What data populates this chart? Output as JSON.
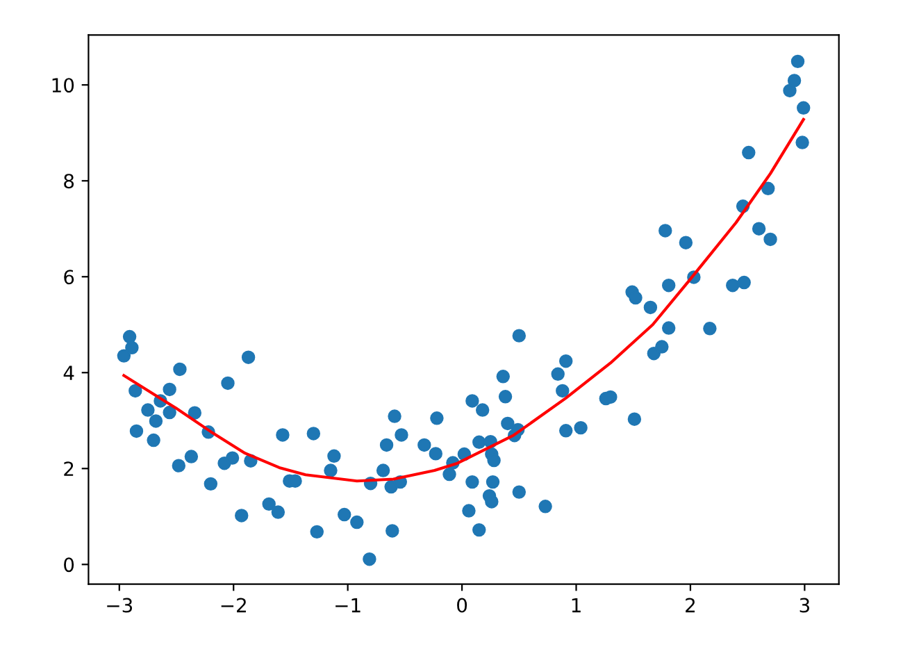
{
  "chart_data": {
    "type": "scatter",
    "xlim": [
      -3.27,
      3.3
    ],
    "ylim": [
      -0.41,
      11.04
    ],
    "xticks": [
      {
        "value": -3,
        "label": "−3"
      },
      {
        "value": -2,
        "label": "−2"
      },
      {
        "value": -1,
        "label": "−1"
      },
      0,
      1,
      2,
      3
    ],
    "yticks": [
      0,
      2,
      4,
      6,
      8,
      10
    ],
    "grid": false,
    "legend": false,
    "series": [
      {
        "color": "#1f77b4",
        "marker": "circle",
        "x": [
          -2.96,
          -2.91,
          -2.89,
          -2.86,
          -2.85,
          -2.75,
          -2.7,
          -2.68,
          -2.64,
          -2.56,
          -2.56,
          -2.48,
          -2.47,
          -2.37,
          -2.34,
          -2.22,
          -2.2,
          -2.08,
          -2.05,
          -2.01,
          -1.93,
          -1.87,
          -1.85,
          -1.69,
          -1.61,
          -1.57,
          -1.51,
          -1.46,
          -1.3,
          -1.27,
          -1.15,
          -1.12,
          -1.03,
          -0.92,
          -0.81,
          -0.8,
          -0.69,
          -0.66,
          -0.62,
          -0.61,
          -0.59,
          -0.54,
          -0.53,
          -0.33,
          -0.23,
          -0.22,
          -0.11,
          -0.08,
          0.02,
          0.06,
          0.09,
          0.09,
          0.15,
          0.15,
          0.18,
          0.25,
          0.24,
          0.26,
          0.26,
          0.28,
          0.27,
          0.36,
          0.38,
          0.4,
          0.46,
          0.49,
          0.5,
          0.5,
          0.73,
          0.84,
          0.88,
          0.91,
          0.91,
          1.04,
          1.26,
          1.3,
          1.51,
          1.49,
          1.52,
          1.65,
          1.68,
          1.75,
          1.78,
          1.81,
          1.81,
          1.96,
          2.03,
          2.17,
          2.37,
          2.47,
          2.46,
          2.51,
          2.6,
          2.68,
          2.7,
          2.87,
          2.91,
          2.94,
          2.99,
          2.98
        ],
        "values": [
          4.35,
          4.75,
          4.52,
          3.62,
          2.78,
          3.22,
          2.59,
          2.99,
          3.41,
          3.65,
          3.17,
          2.06,
          4.07,
          2.25,
          3.16,
          2.76,
          1.68,
          2.11,
          3.78,
          2.22,
          1.02,
          4.32,
          2.16,
          1.26,
          1.09,
          2.7,
          1.74,
          1.74,
          2.73,
          0.68,
          1.96,
          2.26,
          1.04,
          0.88,
          0.11,
          1.69,
          1.96,
          2.49,
          1.62,
          0.7,
          3.09,
          1.72,
          2.7,
          2.49,
          2.31,
          3.05,
          1.88,
          2.12,
          2.3,
          1.12,
          3.41,
          1.72,
          2.55,
          0.72,
          3.22,
          2.56,
          1.43,
          1.31,
          2.3,
          2.17,
          1.72,
          3.92,
          3.5,
          2.94,
          2.69,
          2.81,
          4.77,
          1.51,
          1.21,
          3.97,
          3.62,
          4.24,
          2.79,
          2.85,
          3.46,
          3.49,
          3.03,
          5.68,
          5.56,
          5.36,
          4.4,
          4.54,
          6.96,
          5.82,
          4.93,
          6.71,
          5.99,
          4.92,
          5.82,
          5.88,
          7.47,
          8.59,
          7.0,
          7.84,
          6.78,
          9.88,
          10.09,
          10.49,
          9.52,
          8.8
        ]
      },
      {
        "type": "line",
        "color": "#ff0000",
        "marker": "none",
        "line_style": "solid",
        "x": [
          -2.96,
          -2.51,
          -2.2,
          -1.9,
          -1.6,
          -1.37,
          -0.92,
          -0.6,
          -0.24,
          -0.04,
          0.45,
          0.91,
          1.3,
          1.67,
          2.0,
          2.4,
          2.7,
          2.99
        ],
        "values": [
          3.94,
          3.27,
          2.77,
          2.32,
          2.02,
          1.87,
          1.74,
          1.78,
          1.96,
          2.11,
          2.69,
          3.47,
          4.2,
          5.0,
          5.95,
          7.13,
          8.15,
          9.28
        ]
      }
    ]
  }
}
